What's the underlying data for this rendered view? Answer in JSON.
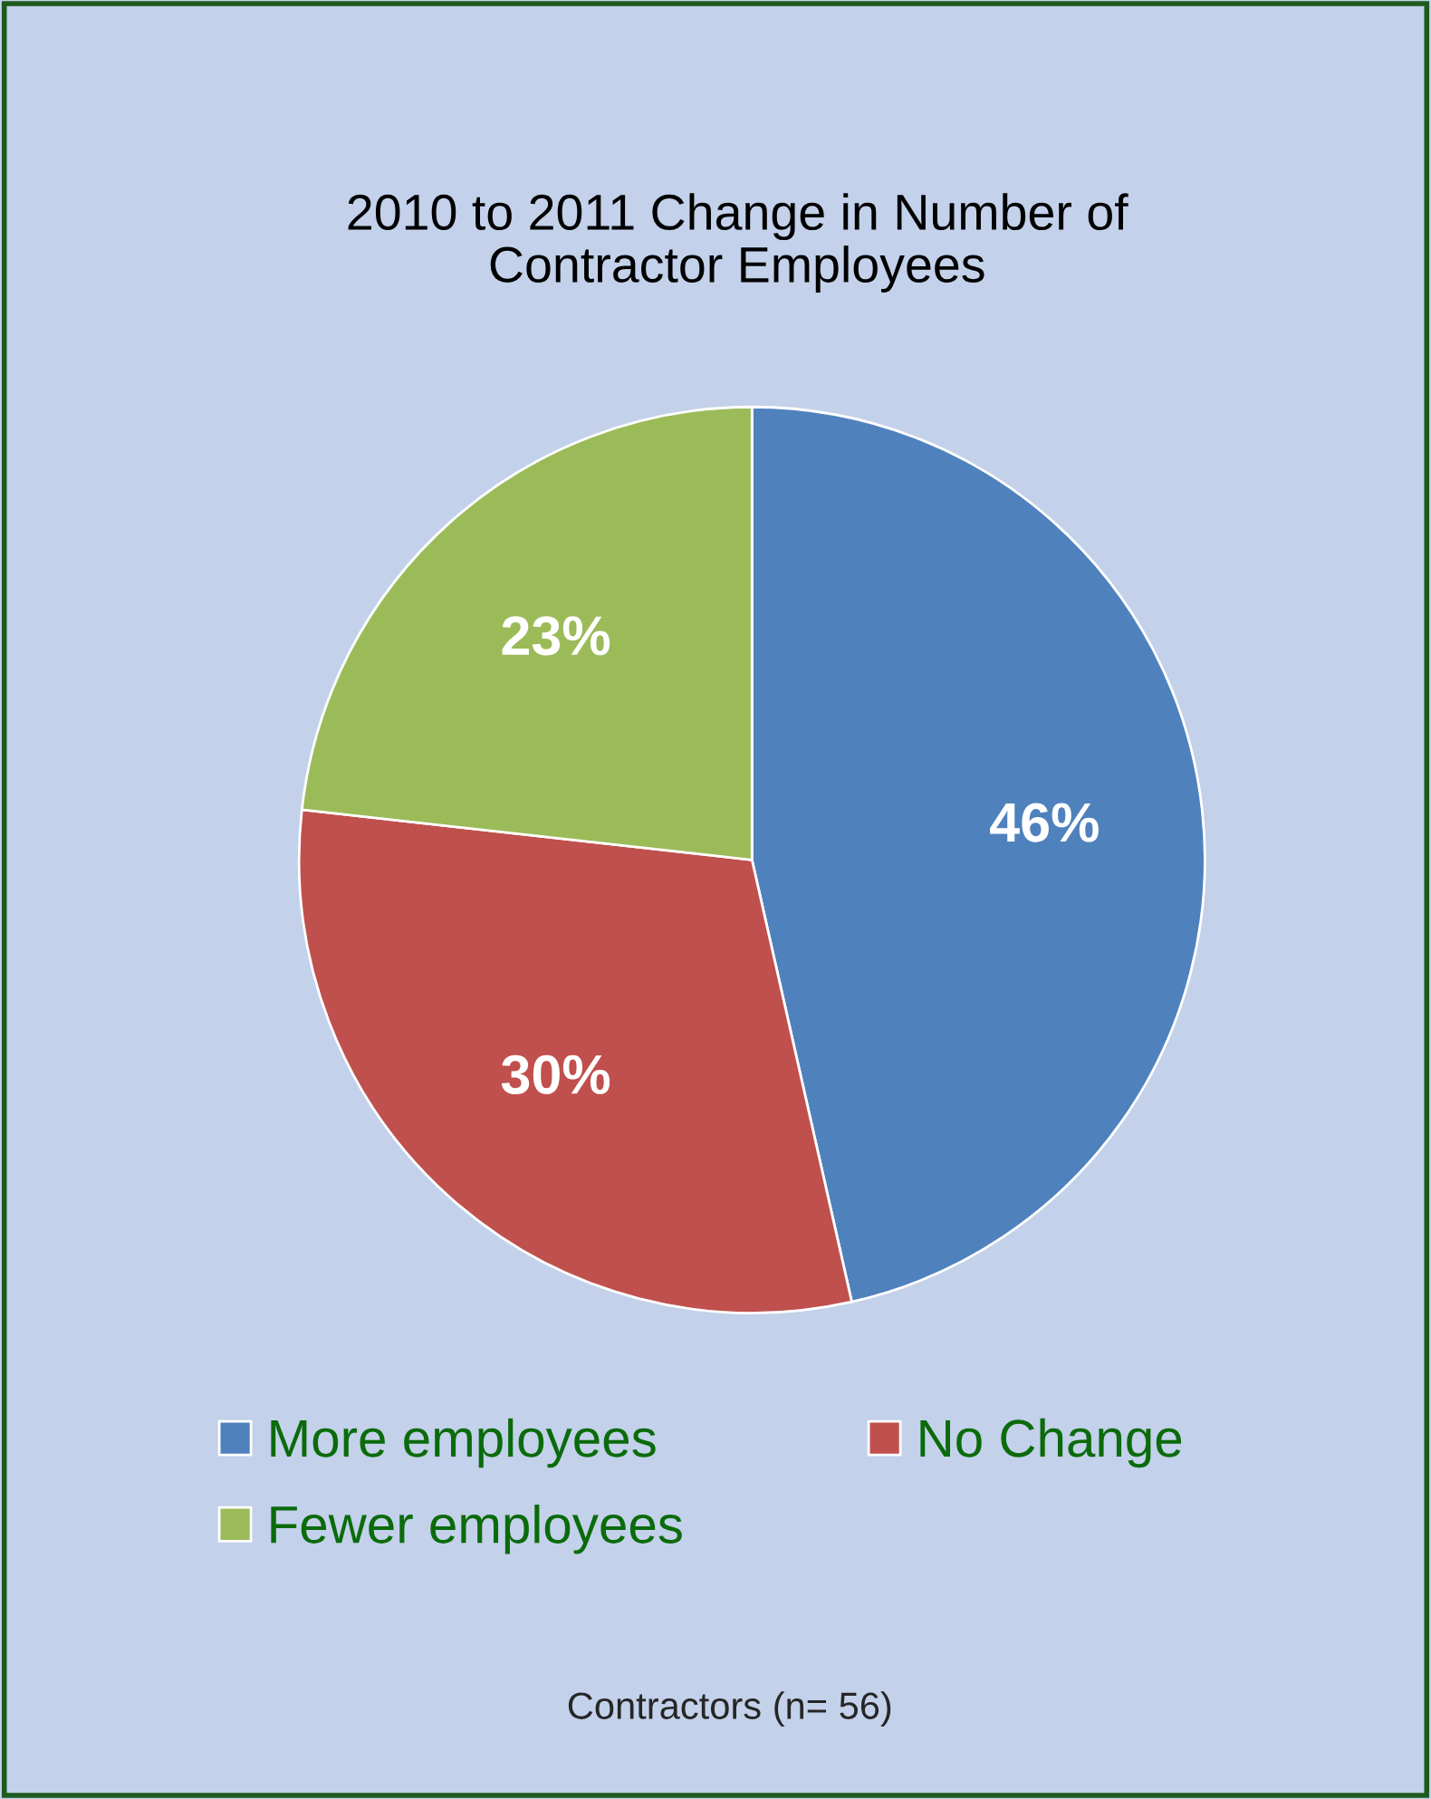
{
  "chart_data": {
    "type": "pie",
    "title": "2010 to 2011 Change in Number of\nContractor Employees",
    "categories": [
      "More employees",
      "No Change",
      "Fewer employees"
    ],
    "values": [
      46,
      30,
      23
    ],
    "colors": [
      "#4f81bd",
      "#c0504d",
      "#9bbb59"
    ],
    "value_labels": [
      "46%",
      "30%",
      "23%"
    ],
    "legend": "bottom",
    "annotations": [
      "Contractors (n= 56)"
    ]
  }
}
